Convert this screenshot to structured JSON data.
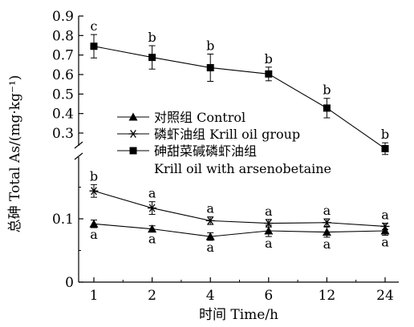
{
  "chart_data": {
    "type": "line",
    "xlabel": "时间 Time/h",
    "ylabel": "总砷 Total As/(mg·kg⁻¹)",
    "categories": [
      "1",
      "2",
      "4",
      "6",
      "12",
      "24"
    ],
    "y_axis": {
      "broken": true,
      "lower_range": [
        0,
        0.17
      ],
      "upper_range": [
        0.2,
        0.9
      ],
      "lower_ticks": [
        "0",
        "0.1"
      ],
      "upper_ticks": [
        "0.3",
        "0.4",
        "0.5",
        "0.6",
        "0.7",
        "0.8",
        "0.9"
      ]
    },
    "series": [
      {
        "key": "control",
        "name": "对照组 Control",
        "marker": "triangle",
        "values": [
          0.092,
          0.084,
          0.072,
          0.081,
          0.079,
          0.081
        ],
        "errors": [
          0.006,
          0.005,
          0.006,
          0.009,
          0.008,
          0.007
        ],
        "sig": [
          "a",
          "a",
          "a",
          "a",
          "a",
          "a"
        ],
        "sig_position": "below"
      },
      {
        "key": "krill",
        "name": "磷虾油组 Krill oil group",
        "marker": "asterisk",
        "values": [
          0.144,
          0.117,
          0.097,
          0.093,
          0.094,
          0.088
        ],
        "errors": [
          0.01,
          0.01,
          0.006,
          0.006,
          0.006,
          0.005
        ],
        "sig": [
          "b",
          "a",
          "a",
          "a",
          "a",
          "a"
        ],
        "sig_position": "above"
      },
      {
        "key": "arseno",
        "name": "砷甜菜碱磷虾油组",
        "name_line2": "Krill oil with arsenobetaine",
        "marker": "square",
        "values": [
          0.745,
          0.688,
          0.635,
          0.603,
          0.428,
          0.22
        ],
        "errors": [
          0.06,
          0.06,
          0.07,
          0.035,
          0.05,
          0.03
        ],
        "sig": [
          "c",
          "b",
          "b",
          "b",
          "b",
          "b"
        ],
        "sig_position": "above"
      }
    ],
    "legend_position": "upper-middle",
    "grid": false
  }
}
